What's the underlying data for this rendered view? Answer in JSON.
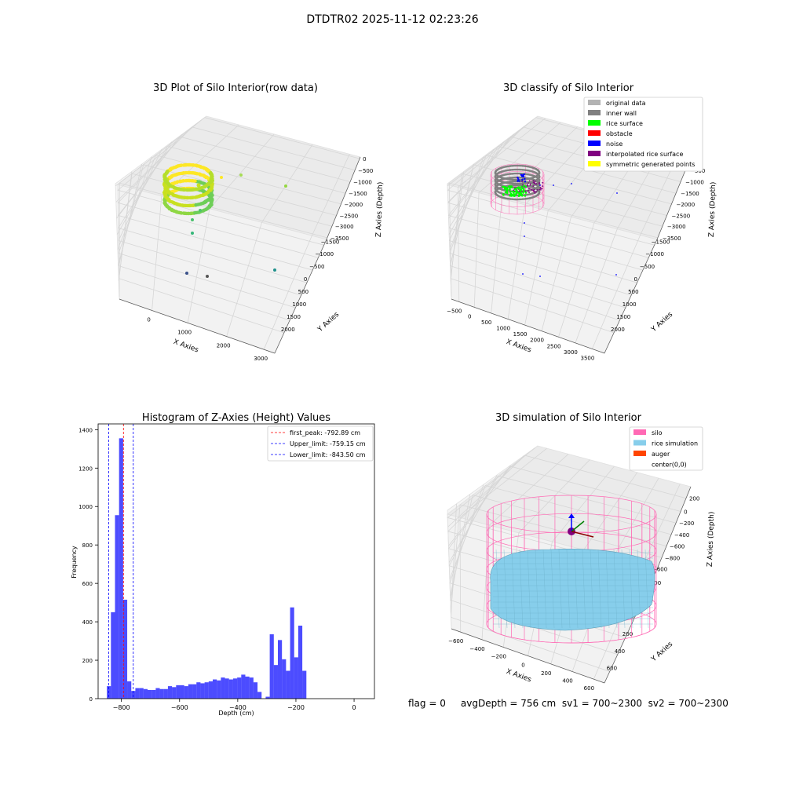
{
  "suptitle": "DTDTR02 2025-11-12 02:23:26",
  "footer": "flag = 0     avgDepth = 756 cm  sv1 = 700~2300  sv2 = 700~2300",
  "chart_data": [
    {
      "type": "scatter",
      "title": "3D Plot of Silo Interior(row data)",
      "xlabel": "X Axies",
      "ylabel": "Y Axies",
      "zlabel": "Z Axies (Depth)",
      "x_ticks": [
        "0",
        "1000",
        "2000",
        "3000"
      ],
      "y_ticks": [
        "2000",
        "1500",
        "1000",
        "500",
        "0",
        "−500",
        "−1000",
        "−1500"
      ],
      "z_ticks": [
        "0",
        "−500",
        "−1000",
        "−1500",
        "−2000",
        "−2500",
        "−3000",
        "−3500"
      ],
      "xlim": [
        -600,
        3600
      ],
      "ylim": [
        -1600,
        2200
      ],
      "zlim": [
        -3800,
        100
      ],
      "point_cloud": "ring of points at depth about -800, colored yellow-green",
      "outliers": [
        {
          "x": 1000,
          "y": 1500,
          "z": -200,
          "color": "#a6dc54"
        },
        {
          "x": 2500,
          "y": 2000,
          "z": -500,
          "color": "#95d840"
        },
        {
          "x": 300,
          "y": 900,
          "z": -1500,
          "color": "#4fc46a"
        },
        {
          "x": 100,
          "y": 500,
          "z": -1900,
          "color": "#4ac16d"
        },
        {
          "x": 0,
          "y": 100,
          "z": -2300,
          "color": "#35b779"
        },
        {
          "x": 700,
          "y": -1100,
          "z": -3400,
          "color": "#3b528b"
        },
        {
          "x": 1200,
          "y": -900,
          "z": -3500,
          "color": "#555555"
        },
        {
          "x": 3200,
          "y": 600,
          "z": -3400,
          "color": "#21918c"
        }
      ]
    },
    {
      "type": "scatter",
      "title": "3D classify of Silo Interior",
      "xlabel": "X Axies",
      "ylabel": "Y Axies",
      "zlabel": "Z Axies (Depth)",
      "x_ticks": [
        "−500",
        "0",
        "500",
        "1000",
        "1500",
        "2000",
        "2500",
        "3000",
        "3500"
      ],
      "y_ticks": [
        "2000",
        "1500",
        "1000",
        "500",
        "0",
        "−500",
        "−1000",
        "−1500"
      ],
      "z_ticks": [
        "0",
        "−500",
        "−1000",
        "−1500",
        "−2000",
        "−2500",
        "−3000",
        "−3500"
      ],
      "legend": [
        {
          "label": "original data",
          "color": "#b3b3b3"
        },
        {
          "label": "inner wall",
          "color": "#808080"
        },
        {
          "label": "rice surface",
          "color": "#00ff00"
        },
        {
          "label": "obstacle",
          "color": "#ff0000"
        },
        {
          "label": "noise",
          "color": "#0000ff"
        },
        {
          "label": "interpolated rice surface",
          "color": "#800080"
        },
        {
          "label": "symmetric generated points",
          "color": "#ffff00"
        }
      ],
      "legend_position": "upper right"
    },
    {
      "type": "bar",
      "title": "Histogram of Z-Axies (Height) Values",
      "xlabel": "Depth (cm)",
      "ylabel": "Frequency",
      "xlim": [
        -880,
        70
      ],
      "ylim": [
        0,
        1430
      ],
      "x_ticks": [
        -800,
        -600,
        -400,
        -200,
        0
      ],
      "y_ticks": [
        0,
        200,
        400,
        600,
        800,
        1000,
        1200,
        1400
      ],
      "bin_start": -850,
      "bin_width": 14,
      "values": [
        65,
        450,
        955,
        1355,
        515,
        90,
        40,
        55,
        55,
        50,
        45,
        45,
        55,
        50,
        50,
        65,
        60,
        70,
        70,
        65,
        75,
        75,
        85,
        80,
        85,
        90,
        100,
        95,
        110,
        105,
        100,
        105,
        110,
        125,
        115,
        110,
        85,
        35,
        0,
        10,
        335,
        175,
        305,
        205,
        145,
        475,
        215,
        380,
        145
      ],
      "bar_color": "#0000ff",
      "vlines": [
        {
          "label": "first_peak: -792.89 cm",
          "x": -792.89,
          "color": "#ff0000"
        },
        {
          "label": "Upper_limit: -759.15 cm",
          "x": -759.15,
          "color": "#0000ff"
        },
        {
          "label": "Lower_limit: -843.50 cm",
          "x": -843.5,
          "color": "#0000ff"
        }
      ],
      "legend_position": "upper right"
    },
    {
      "type": "scatter",
      "title": "3D simulation of Silo Interior",
      "xlabel": "X Axies",
      "ylabel": "Y Axies",
      "zlabel": "Z Axies (Depth)",
      "x_ticks": [
        "−600",
        "−400",
        "−200",
        "0",
        "200",
        "400",
        "600"
      ],
      "y_ticks": [
        "600",
        "400",
        "200",
        "0",
        "−200",
        "−400",
        "−600"
      ],
      "z_ticks": [
        "200",
        "0",
        "−200",
        "−400",
        "−600",
        "−800"
      ],
      "legend": [
        {
          "label": "silo",
          "color": "#ff69b4"
        },
        {
          "label": "rice simulation",
          "color": "#87ceeb"
        },
        {
          "label": "auger",
          "color": "#ff4500"
        },
        {
          "label": "center(0,0)",
          "color": "#ffffff"
        }
      ],
      "legend_position": "upper right"
    }
  ]
}
